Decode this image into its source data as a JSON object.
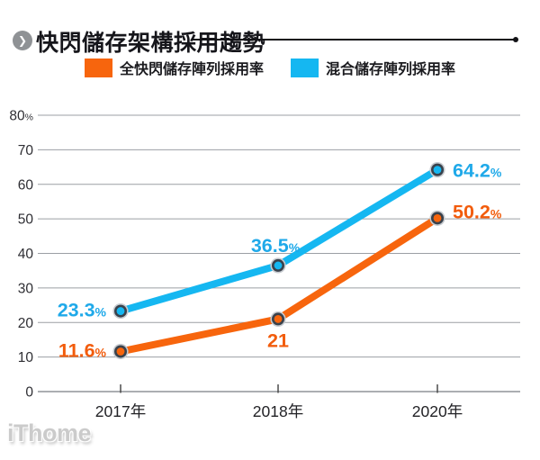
{
  "header": {
    "title": "快閃儲存架構採用趨勢"
  },
  "legend": [
    {
      "label": "全快閃儲存陣列採用率",
      "color": "#F7650D"
    },
    {
      "label": "混合儲存陣列採用率",
      "color": "#15B7F1"
    }
  ],
  "watermark": {
    "text": "iThome"
  },
  "chart_data": {
    "type": "line",
    "title": "快閃儲存架構採用趨勢",
    "categories": [
      "2017年",
      "2018年",
      "2020年"
    ],
    "series": [
      {
        "name": "全快閃儲存陣列採用率",
        "color": "#F7650D",
        "label_color": "#F25C0C",
        "values": [
          11.6,
          21,
          50.2
        ],
        "point_labels": [
          "11.6%",
          "21",
          "50.2%"
        ]
      },
      {
        "name": "混合儲存陣列採用率",
        "color": "#15B7F1",
        "label_color": "#1FA9E9",
        "values": [
          23.3,
          36.5,
          64.2
        ],
        "point_labels": [
          "23.3%",
          "36.5%",
          "64.2%"
        ]
      }
    ],
    "xlabel": "",
    "ylabel": "",
    "ylim": [
      0,
      80
    ],
    "ytick_values": [
      80,
      70,
      60,
      50,
      40,
      30,
      20,
      10,
      0
    ],
    "ytick_labels": [
      "80%",
      "70",
      "60",
      "50",
      "40",
      "30",
      "20",
      "10",
      "0"
    ],
    "grid": true,
    "legend_position": "top",
    "marker": {
      "ring_color": "#3A424C",
      "halo_color": "#C7CBD0"
    },
    "axis": {
      "grid_color": "#9B9FA4",
      "baseline_color": "#7A7E83",
      "tick_color": "#4A4A4A"
    }
  }
}
